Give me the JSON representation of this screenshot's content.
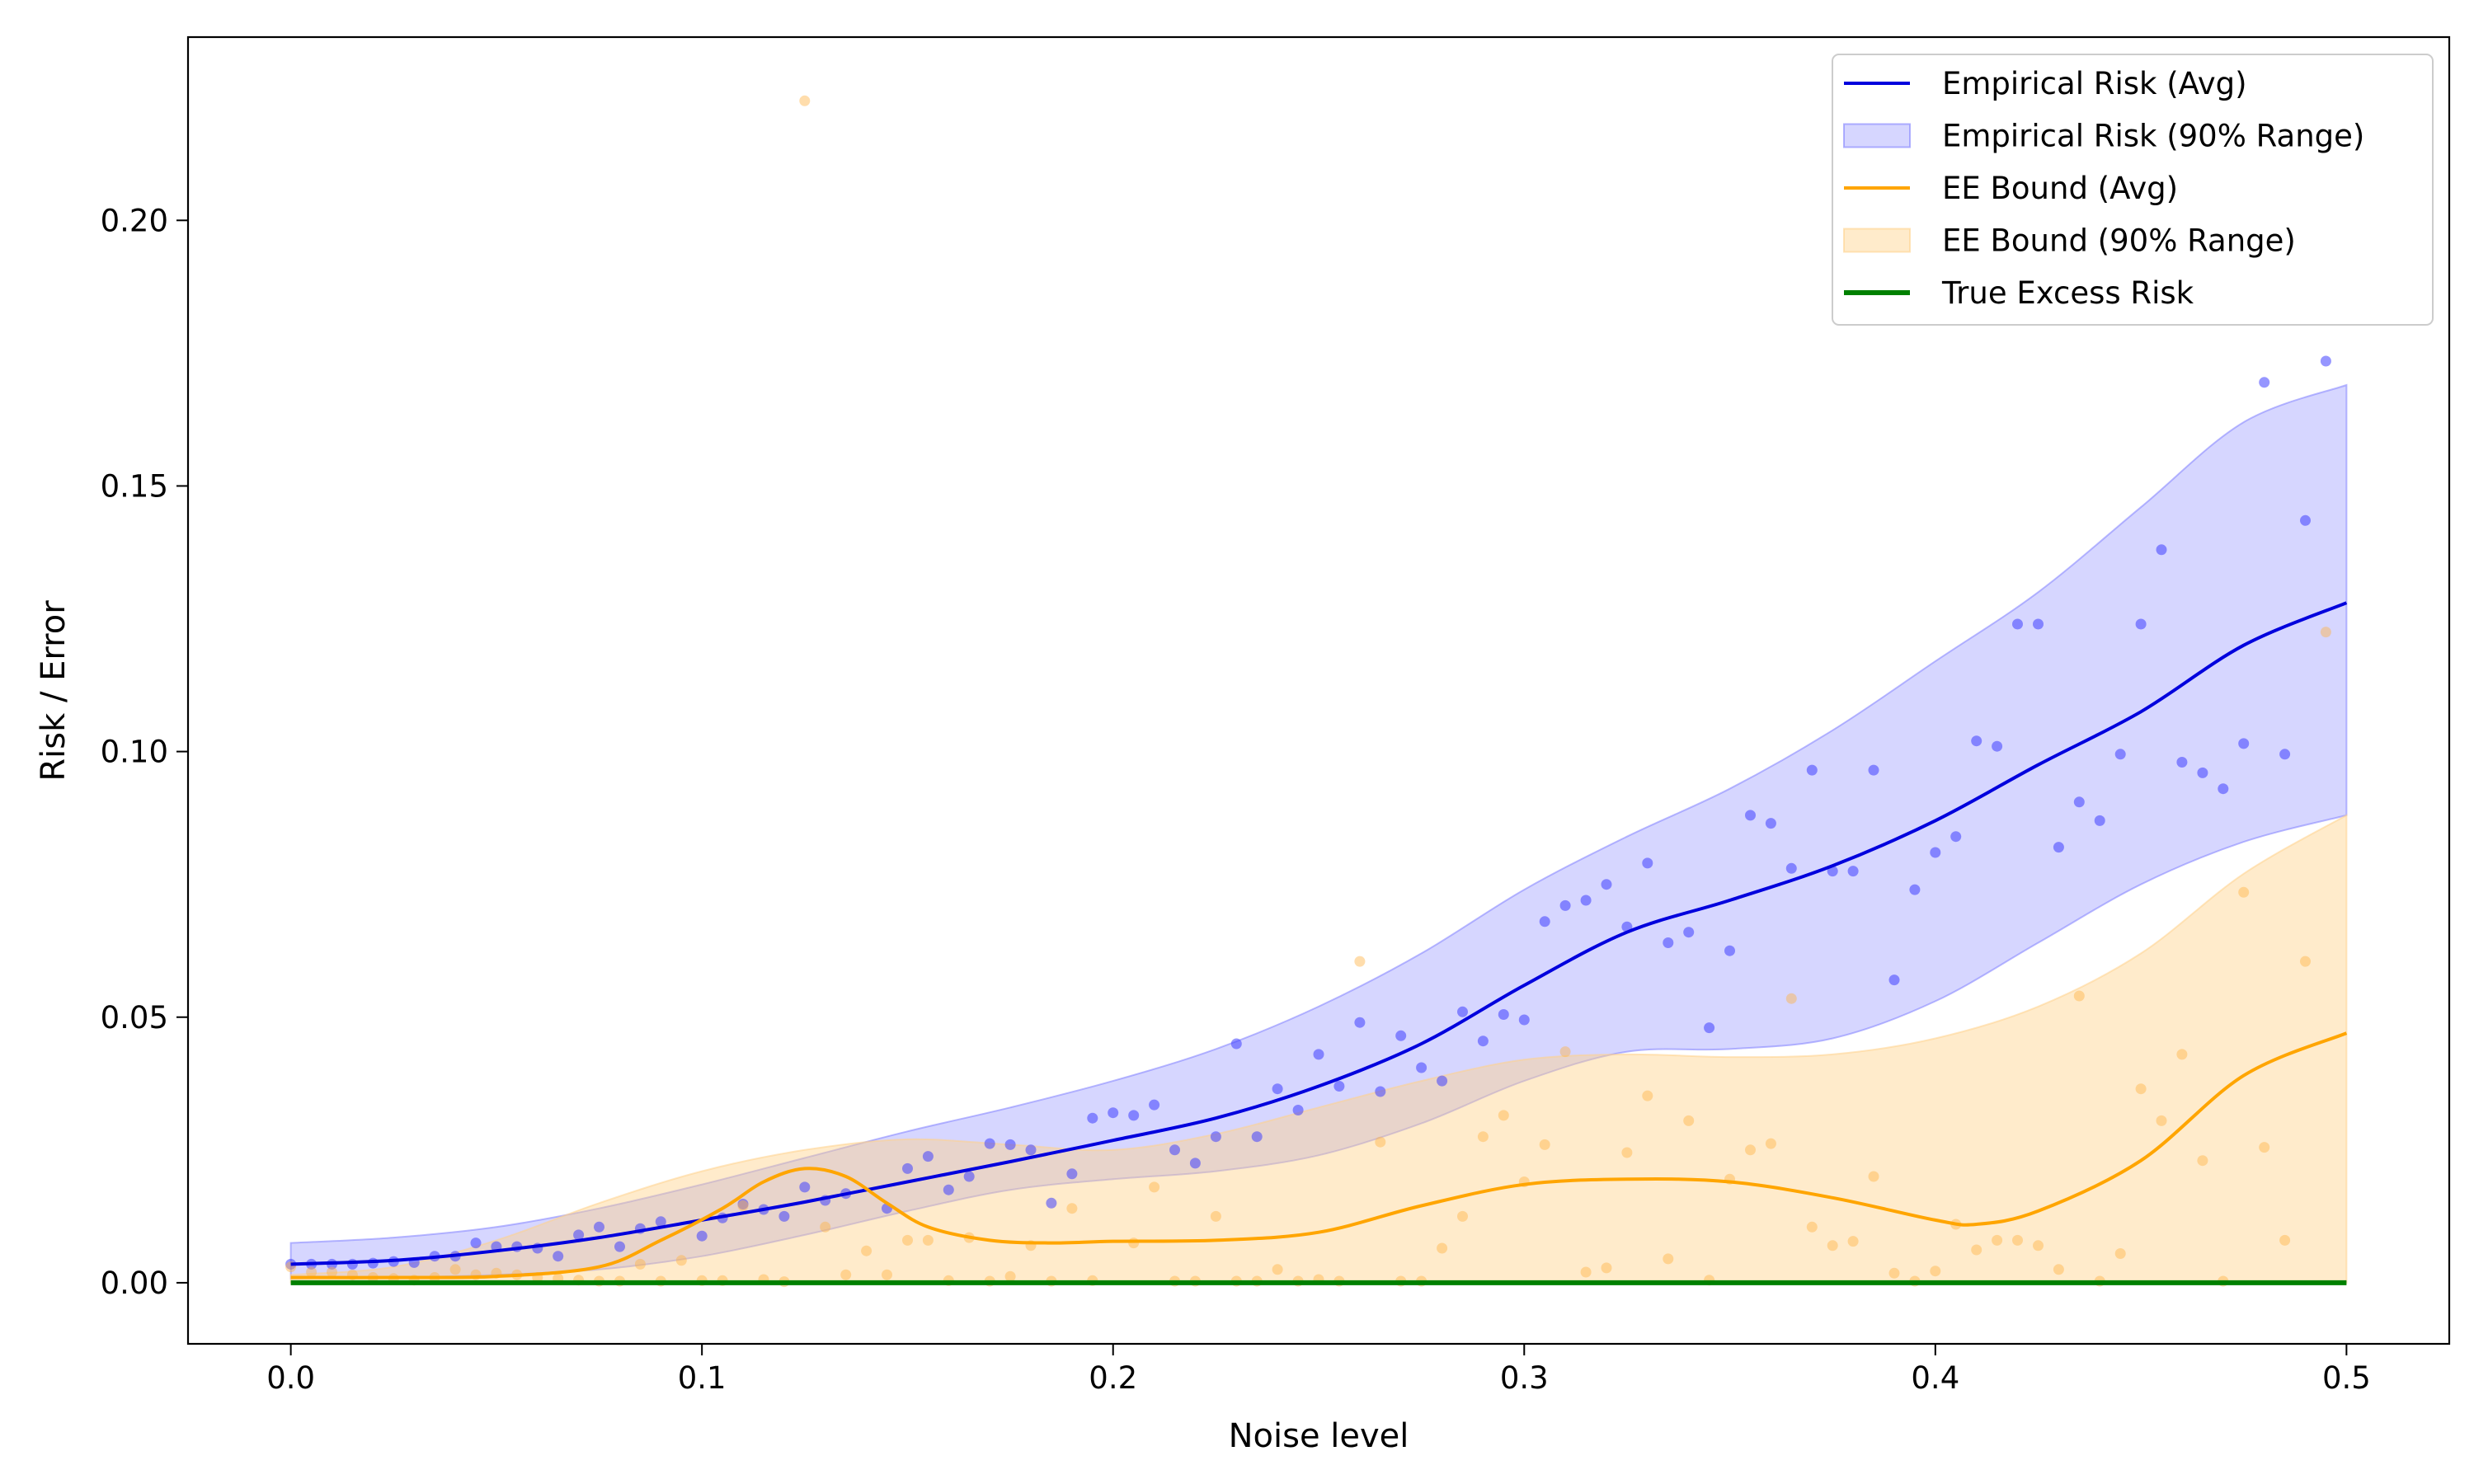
{
  "chart_data": {
    "type": "line",
    "title": "",
    "xlabel": "Noise level",
    "ylabel": "Risk / Error",
    "xlim": [
      -0.025,
      0.525
    ],
    "ylim": [
      -0.0115,
      0.2345
    ],
    "xticks": [
      0.0,
      0.1,
      0.2,
      0.3,
      0.4,
      0.5
    ],
    "xtick_labels": [
      "0.0",
      "0.1",
      "0.2",
      "0.3",
      "0.4",
      "0.5"
    ],
    "yticks": [
      0.0,
      0.05,
      0.1,
      0.15,
      0.2
    ],
    "ytick_labels": [
      "0.00",
      "0.05",
      "0.10",
      "0.15",
      "0.20"
    ],
    "grid": false,
    "legend_position": "top-right",
    "legend": [
      {
        "label": "Empirical Risk (Avg)",
        "kind": "line",
        "color": "#0000dd"
      },
      {
        "label": "Empirical Risk (90% Range)",
        "kind": "band",
        "color": "#8080ff"
      },
      {
        "label": "EE Bound (Avg)",
        "kind": "line",
        "color": "#ffa500"
      },
      {
        "label": "EE Bound (90% Range)",
        "kind": "band",
        "color": "#ffd28c"
      },
      {
        "label": "True Excess Risk",
        "kind": "line",
        "color": "#008000"
      }
    ],
    "series": [
      {
        "name": "Empirical Risk (Avg)",
        "color": "#0000dd",
        "x": [
          0.0,
          0.025,
          0.05,
          0.075,
          0.1,
          0.125,
          0.15,
          0.175,
          0.2,
          0.225,
          0.25,
          0.275,
          0.3,
          0.325,
          0.35,
          0.375,
          0.4,
          0.425,
          0.45,
          0.475,
          0.5
        ],
        "y": [
          0.0035,
          0.0042,
          0.006,
          0.0085,
          0.0118,
          0.0152,
          0.019,
          0.0228,
          0.0268,
          0.031,
          0.037,
          0.045,
          0.056,
          0.066,
          0.072,
          0.0785,
          0.087,
          0.0975,
          0.1075,
          0.12,
          0.128
        ]
      },
      {
        "name": "Empirical Risk (90% Range)",
        "color": "#8080ff",
        "x": [
          0.0,
          0.025,
          0.05,
          0.075,
          0.1,
          0.125,
          0.15,
          0.175,
          0.2,
          0.225,
          0.25,
          0.275,
          0.3,
          0.325,
          0.35,
          0.375,
          0.4,
          0.425,
          0.45,
          0.475,
          0.5
        ],
        "lower": [
          0.0008,
          0.001,
          0.0015,
          0.0025,
          0.005,
          0.009,
          0.0135,
          0.0175,
          0.0195,
          0.021,
          0.024,
          0.03,
          0.038,
          0.0435,
          0.044,
          0.046,
          0.053,
          0.064,
          0.075,
          0.083,
          0.088
        ],
        "upper": [
          0.0075,
          0.0085,
          0.0105,
          0.014,
          0.0185,
          0.0235,
          0.0285,
          0.033,
          0.038,
          0.044,
          0.052,
          0.062,
          0.074,
          0.084,
          0.093,
          0.104,
          0.117,
          0.13,
          0.146,
          0.162,
          0.169
        ]
      },
      {
        "name": "EE Bound (Avg)",
        "color": "#ffa500",
        "x": [
          0.0,
          0.025,
          0.05,
          0.075,
          0.09,
          0.105,
          0.115,
          0.125,
          0.135,
          0.145,
          0.155,
          0.17,
          0.185,
          0.2,
          0.225,
          0.25,
          0.275,
          0.3,
          0.325,
          0.35,
          0.375,
          0.4,
          0.41,
          0.425,
          0.45,
          0.475,
          0.5
        ],
        "y": [
          0.001,
          0.001,
          0.0012,
          0.003,
          0.008,
          0.014,
          0.019,
          0.0215,
          0.02,
          0.015,
          0.0105,
          0.008,
          0.0075,
          0.0078,
          0.008,
          0.0095,
          0.0145,
          0.0185,
          0.0195,
          0.019,
          0.016,
          0.0118,
          0.011,
          0.0135,
          0.023,
          0.039,
          0.047
        ]
      },
      {
        "name": "EE Bound (90% Range)",
        "color": "#ffd28c",
        "x": [
          0.0,
          0.025,
          0.05,
          0.075,
          0.1,
          0.125,
          0.15,
          0.175,
          0.2,
          0.225,
          0.25,
          0.275,
          0.3,
          0.325,
          0.35,
          0.375,
          0.4,
          0.425,
          0.45,
          0.475,
          0.5
        ],
        "lower": [
          0.0,
          0.0,
          0.0,
          0.0,
          0.0,
          0.0,
          0.0,
          0.0,
          0.0,
          0.0,
          0.0,
          0.0,
          0.0,
          0.0,
          0.0,
          0.0,
          0.0,
          0.0,
          0.0,
          0.0,
          0.0
        ],
        "upper": [
          0.0015,
          0.003,
          0.008,
          0.015,
          0.021,
          0.025,
          0.027,
          0.026,
          0.025,
          0.028,
          0.033,
          0.038,
          0.042,
          0.043,
          0.0425,
          0.043,
          0.046,
          0.052,
          0.062,
          0.077,
          0.088
        ]
      },
      {
        "name": "True Excess Risk",
        "color": "#008000",
        "x": [
          0.0,
          0.5
        ],
        "y": [
          0.0,
          0.0
        ]
      }
    ],
    "scatter": [
      {
        "name": "Empirical Risk samples",
        "color": "#4040ff",
        "points": [
          [
            0.0,
            0.0035
          ],
          [
            0.005,
            0.0035
          ],
          [
            0.01,
            0.0035
          ],
          [
            0.015,
            0.0035
          ],
          [
            0.02,
            0.0037
          ],
          [
            0.025,
            0.004
          ],
          [
            0.03,
            0.0038
          ],
          [
            0.035,
            0.005
          ],
          [
            0.04,
            0.005
          ],
          [
            0.045,
            0.0075
          ],
          [
            0.05,
            0.0068
          ],
          [
            0.055,
            0.0068
          ],
          [
            0.06,
            0.0065
          ],
          [
            0.065,
            0.005
          ],
          [
            0.07,
            0.009
          ],
          [
            0.075,
            0.0105
          ],
          [
            0.08,
            0.0068
          ],
          [
            0.085,
            0.0102
          ],
          [
            0.09,
            0.0115
          ],
          [
            0.1,
            0.0088
          ],
          [
            0.105,
            0.0122
          ],
          [
            0.11,
            0.0148
          ],
          [
            0.115,
            0.0138
          ],
          [
            0.12,
            0.0125
          ],
          [
            0.125,
            0.018
          ],
          [
            0.13,
            0.0155
          ],
          [
            0.135,
            0.0168
          ],
          [
            0.145,
            0.014
          ],
          [
            0.15,
            0.0215
          ],
          [
            0.155,
            0.0238
          ],
          [
            0.16,
            0.0175
          ],
          [
            0.165,
            0.02
          ],
          [
            0.17,
            0.0262
          ],
          [
            0.175,
            0.026
          ],
          [
            0.18,
            0.025
          ],
          [
            0.185,
            0.015
          ],
          [
            0.19,
            0.0205
          ],
          [
            0.195,
            0.031
          ],
          [
            0.2,
            0.032
          ],
          [
            0.205,
            0.0315
          ],
          [
            0.21,
            0.0335
          ],
          [
            0.215,
            0.025
          ],
          [
            0.22,
            0.0225
          ],
          [
            0.225,
            0.0275
          ],
          [
            0.23,
            0.045
          ],
          [
            0.235,
            0.0275
          ],
          [
            0.24,
            0.0365
          ],
          [
            0.245,
            0.0325
          ],
          [
            0.25,
            0.043
          ],
          [
            0.255,
            0.037
          ],
          [
            0.26,
            0.049
          ],
          [
            0.265,
            0.036
          ],
          [
            0.27,
            0.0465
          ],
          [
            0.275,
            0.0405
          ],
          [
            0.28,
            0.038
          ],
          [
            0.285,
            0.051
          ],
          [
            0.29,
            0.0455
          ],
          [
            0.295,
            0.0505
          ],
          [
            0.3,
            0.0495
          ],
          [
            0.305,
            0.068
          ],
          [
            0.31,
            0.071
          ],
          [
            0.315,
            0.072
          ],
          [
            0.32,
            0.075
          ],
          [
            0.325,
            0.067
          ],
          [
            0.33,
            0.079
          ],
          [
            0.335,
            0.064
          ],
          [
            0.34,
            0.066
          ],
          [
            0.345,
            0.048
          ],
          [
            0.35,
            0.0625
          ],
          [
            0.355,
            0.088
          ],
          [
            0.36,
            0.0865
          ],
          [
            0.365,
            0.078
          ],
          [
            0.37,
            0.0965
          ],
          [
            0.375,
            0.0775
          ],
          [
            0.38,
            0.0775
          ],
          [
            0.385,
            0.0965
          ],
          [
            0.39,
            0.057
          ],
          [
            0.395,
            0.074
          ],
          [
            0.4,
            0.081
          ],
          [
            0.405,
            0.084
          ],
          [
            0.41,
            0.102
          ],
          [
            0.415,
            0.101
          ],
          [
            0.42,
            0.124
          ],
          [
            0.425,
            0.124
          ],
          [
            0.43,
            0.082
          ],
          [
            0.435,
            0.0905
          ],
          [
            0.44,
            0.087
          ],
          [
            0.445,
            0.0995
          ],
          [
            0.45,
            0.124
          ],
          [
            0.455,
            0.138
          ],
          [
            0.46,
            0.098
          ],
          [
            0.465,
            0.096
          ],
          [
            0.47,
            0.093
          ],
          [
            0.475,
            0.1015
          ],
          [
            0.48,
            0.1695
          ],
          [
            0.485,
            0.0995
          ],
          [
            0.49,
            0.1435
          ],
          [
            0.495,
            0.1735
          ]
        ]
      },
      {
        "name": "EE Bound samples",
        "color": "#ffb347",
        "points": [
          [
            0.0,
            0.003
          ],
          [
            0.005,
            0.002
          ],
          [
            0.01,
            0.002
          ],
          [
            0.015,
            0.0015
          ],
          [
            0.02,
            0.001
          ],
          [
            0.025,
            0.0008
          ],
          [
            0.03,
            0.0005
          ],
          [
            0.035,
            0.001
          ],
          [
            0.04,
            0.0025
          ],
          [
            0.045,
            0.0015
          ],
          [
            0.05,
            0.0018
          ],
          [
            0.055,
            0.0015
          ],
          [
            0.06,
            0.001
          ],
          [
            0.065,
            0.0008
          ],
          [
            0.07,
            0.0005
          ],
          [
            0.075,
            0.0003
          ],
          [
            0.08,
            0.0003
          ],
          [
            0.085,
            0.0035
          ],
          [
            0.09,
            0.0003
          ],
          [
            0.095,
            0.0042
          ],
          [
            0.1,
            0.0004
          ],
          [
            0.105,
            0.0004
          ],
          [
            0.11,
            0.0145
          ],
          [
            0.115,
            0.0006
          ],
          [
            0.12,
            0.0002
          ],
          [
            0.125,
            0.2225
          ],
          [
            0.13,
            0.0105
          ],
          [
            0.135,
            0.0015
          ],
          [
            0.14,
            0.006
          ],
          [
            0.145,
            0.0015
          ],
          [
            0.15,
            0.008
          ],
          [
            0.155,
            0.008
          ],
          [
            0.16,
            0.0004
          ],
          [
            0.165,
            0.0085
          ],
          [
            0.17,
            0.0003
          ],
          [
            0.175,
            0.0012
          ],
          [
            0.18,
            0.007
          ],
          [
            0.185,
            0.0003
          ],
          [
            0.19,
            0.014
          ],
          [
            0.195,
            0.0004
          ],
          [
            0.205,
            0.0075
          ],
          [
            0.21,
            0.018
          ],
          [
            0.215,
            0.0003
          ],
          [
            0.22,
            0.0003
          ],
          [
            0.225,
            0.0125
          ],
          [
            0.23,
            0.0003
          ],
          [
            0.235,
            0.0003
          ],
          [
            0.24,
            0.0025
          ],
          [
            0.245,
            0.0003
          ],
          [
            0.25,
            0.0006
          ],
          [
            0.255,
            0.0003
          ],
          [
            0.26,
            0.0605
          ],
          [
            0.265,
            0.0265
          ],
          [
            0.27,
            0.0003
          ],
          [
            0.275,
            0.0003
          ],
          [
            0.28,
            0.0065
          ],
          [
            0.285,
            0.0125
          ],
          [
            0.29,
            0.0275
          ],
          [
            0.295,
            0.0315
          ],
          [
            0.3,
            0.019
          ],
          [
            0.305,
            0.026
          ],
          [
            0.31,
            0.0435
          ],
          [
            0.315,
            0.002
          ],
          [
            0.32,
            0.0028
          ],
          [
            0.325,
            0.0245
          ],
          [
            0.33,
            0.0352
          ],
          [
            0.335,
            0.0045
          ],
          [
            0.34,
            0.0305
          ],
          [
            0.345,
            0.0005
          ],
          [
            0.35,
            0.0195
          ],
          [
            0.355,
            0.025
          ],
          [
            0.36,
            0.0262
          ],
          [
            0.365,
            0.0535
          ],
          [
            0.37,
            0.0105
          ],
          [
            0.375,
            0.007
          ],
          [
            0.38,
            0.0078
          ],
          [
            0.385,
            0.02
          ],
          [
            0.39,
            0.0018
          ],
          [
            0.395,
            0.0003
          ],
          [
            0.4,
            0.0022
          ],
          [
            0.405,
            0.011
          ],
          [
            0.41,
            0.0062
          ],
          [
            0.415,
            0.008
          ],
          [
            0.42,
            0.008
          ],
          [
            0.425,
            0.007
          ],
          [
            0.43,
            0.0025
          ],
          [
            0.435,
            0.054
          ],
          [
            0.44,
            0.0003
          ],
          [
            0.445,
            0.0055
          ],
          [
            0.45,
            0.0365
          ],
          [
            0.455,
            0.0305
          ],
          [
            0.46,
            0.043
          ],
          [
            0.465,
            0.023
          ],
          [
            0.47,
            0.0003
          ],
          [
            0.475,
            0.0735
          ],
          [
            0.48,
            0.0255
          ],
          [
            0.485,
            0.008
          ],
          [
            0.49,
            0.0605
          ],
          [
            0.495,
            0.1225
          ]
        ]
      }
    ]
  }
}
